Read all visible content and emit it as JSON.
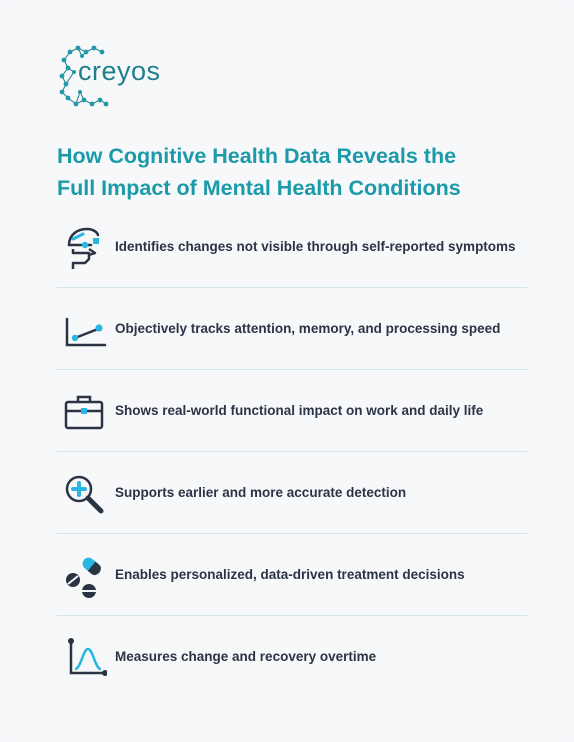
{
  "logo": {
    "text": "creyos"
  },
  "headline": {
    "line1": "How Cognitive Health Data Reveals the",
    "line2": "Full Impact of Mental Health Conditions"
  },
  "items": [
    {
      "label": "Identifies changes not visible through self-reported symptoms",
      "icon": "brain-head-icon"
    },
    {
      "label": "Objectively tracks attention, memory, and processing speed",
      "icon": "line-chart-icon"
    },
    {
      "label": "Shows real-world functional impact on work and daily life",
      "icon": "briefcase-icon"
    },
    {
      "label": "Supports earlier and more accurate detection",
      "icon": "magnifier-plus-icon"
    },
    {
      "label": "Enables personalized, data-driven treatment decisions",
      "icon": "pills-icon"
    },
    {
      "label": "Measures change and recovery overtime",
      "icon": "bell-curve-icon"
    }
  ],
  "colors": {
    "accent": "#1b9aaa",
    "icon_dark": "#2b3445",
    "icon_light": "#29b6e0",
    "divider": "#d3e6ea"
  }
}
